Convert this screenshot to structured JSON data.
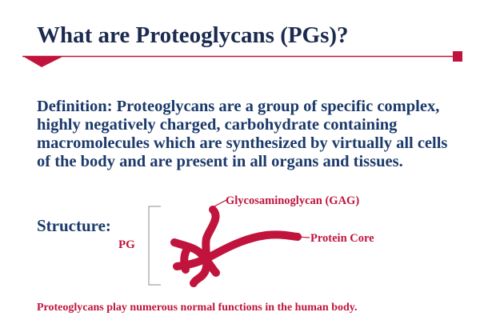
{
  "slide": {
    "title": "What are Proteoglycans (PGs)?",
    "definition": "Definition:  Proteoglycans are a group of specific complex, highly negatively charged, carbohydrate containing macromolecules which are synthesized by virtually all cells of the body and are present in all organs and tissues.",
    "structure_label": "Structure:",
    "diagram": {
      "pg_label": "PG",
      "gag_label": "Glycosaminoglycan (GAG)",
      "protein_core_label": "Protein Core"
    },
    "footer": "Proteoglycans play numerous normal functions in the human body."
  },
  "colors": {
    "title": "#1b2a4e",
    "body_text": "#1b3a6b",
    "accent": "#c0143c"
  }
}
